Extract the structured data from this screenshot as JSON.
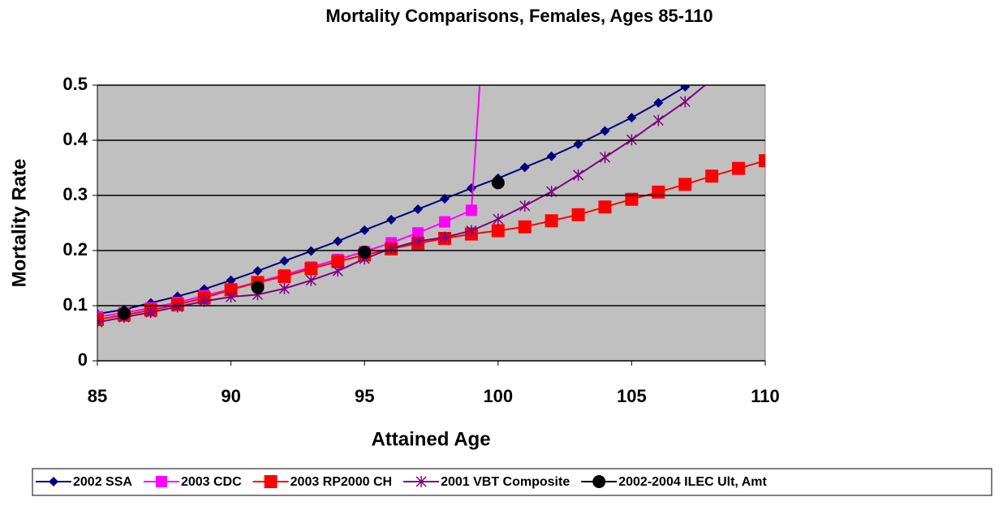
{
  "chart_data": {
    "type": "line",
    "title": "Mortality Comparisons, Females, Ages 85-110",
    "x_label": "Attained Age",
    "y_label": "Mortality Rate",
    "x": [
      85,
      86,
      87,
      88,
      89,
      90,
      91,
      92,
      93,
      94,
      95,
      96,
      97,
      98,
      99,
      100,
      101,
      102,
      103,
      104,
      105,
      106,
      107,
      108,
      109,
      110
    ],
    "xlim": [
      85,
      110
    ],
    "xticks": [
      85,
      90,
      95,
      100,
      105,
      110
    ],
    "ylim": [
      0,
      0.5
    ],
    "yticks": [
      0,
      0.1,
      0.2,
      0.3,
      0.4,
      0.5
    ],
    "grid": true,
    "legend": "bottom",
    "series": [
      {
        "name": "2002 SSA",
        "color": "#000080",
        "marker": "diamond",
        "line": true,
        "values": [
          0.085,
          0.093,
          0.105,
          0.117,
          0.13,
          0.146,
          0.163,
          0.181,
          0.199,
          0.217,
          0.237,
          0.256,
          0.275,
          0.294,
          0.313,
          0.331,
          0.351,
          0.371,
          0.393,
          0.417,
          0.441,
          0.468,
          0.497,
          0.53,
          null,
          null
        ]
      },
      {
        "name": "2003 CDC",
        "color": "#ff00ff",
        "marker": "square",
        "line": true,
        "values": [
          0.08,
          0.087,
          0.096,
          0.106,
          0.118,
          0.13,
          0.143,
          0.156,
          0.17,
          0.184,
          0.198,
          0.214,
          0.232,
          0.252,
          0.273,
          1.0,
          null,
          null,
          null,
          null,
          null,
          null,
          null,
          null,
          null,
          null
        ]
      },
      {
        "name": "2003 RP2000 CH",
        "color": "#ff0000",
        "marker": "bigsquare",
        "line": true,
        "values": [
          0.075,
          0.083,
          0.092,
          0.102,
          0.114,
          0.129,
          0.142,
          0.153,
          0.167,
          0.18,
          0.192,
          0.203,
          0.213,
          0.222,
          0.23,
          0.236,
          0.243,
          0.254,
          0.265,
          0.279,
          0.293,
          0.306,
          0.32,
          0.335,
          0.349,
          0.363
        ]
      },
      {
        "name": "2001 VBT Composite",
        "color": "#800080",
        "marker": "star",
        "line": true,
        "values": [
          0.07,
          0.079,
          0.088,
          0.098,
          0.108,
          0.116,
          0.12,
          0.131,
          0.146,
          0.163,
          0.185,
          0.204,
          0.217,
          0.224,
          0.236,
          0.257,
          0.281,
          0.307,
          0.337,
          0.369,
          0.401,
          0.436,
          0.47,
          0.51,
          null,
          null
        ]
      },
      {
        "name": "2002-2004 ILEC Ult, Amt",
        "color": "#000000",
        "marker": "circle",
        "line": false,
        "values": [
          null,
          0.086,
          null,
          null,
          null,
          null,
          0.133,
          null,
          null,
          null,
          0.197,
          null,
          null,
          null,
          null,
          0.323,
          null,
          null,
          null,
          null,
          null,
          null,
          null,
          null,
          null,
          null
        ]
      }
    ]
  }
}
